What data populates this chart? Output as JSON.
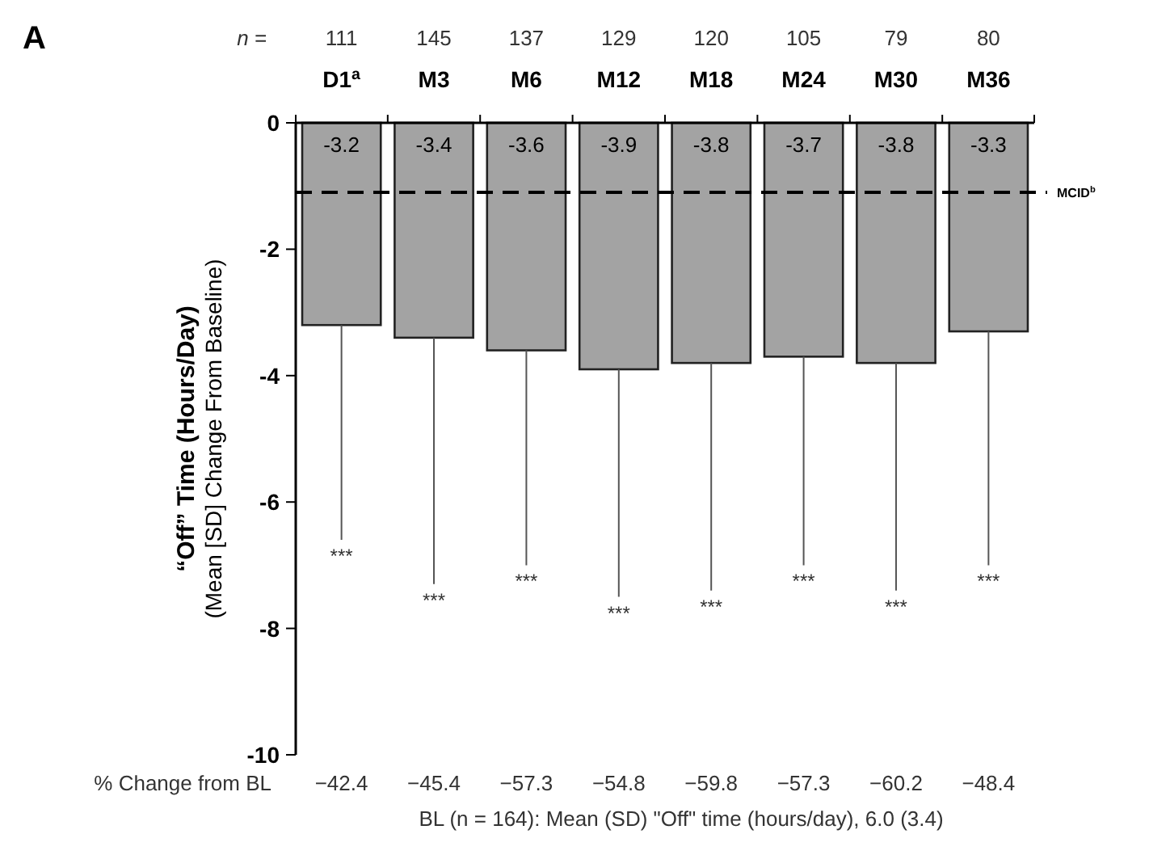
{
  "chart_data": {
    "type": "bar",
    "title": "A",
    "ylabel": "“Off” Time (Hours/Day)\n(Mean [SD] Change From Baseline)",
    "categories": [
      "D1$^{a}$",
      "M3",
      "M6",
      "M12",
      "M18",
      "M24",
      "M30",
      "M36"
    ],
    "values": [
      -3.2,
      -3.4,
      -3.6,
      -3.9,
      -3.8,
      -3.7,
      -3.8,
      -3.3
    ],
    "errors": [
      [
        -6.6,
        -3.2
      ],
      [
        -7.3,
        -3.4
      ],
      [
        -7.0,
        -3.6
      ],
      [
        -7.5,
        -3.9
      ],
      [
        -7.4,
        -3.8
      ],
      [
        -7.0,
        -3.7
      ],
      [
        -7.4,
        -3.8
      ],
      [
        -7.0,
        -3.3
      ]
    ],
    "color": "#a3a3a3",
    "data_labels": true,
    "ylim": [
      -10,
      0
    ],
    "yticks": [
      0,
      -2,
      -4,
      -6,
      -8,
      -10
    ],
    "grid": false,
    "ref_lines": [
      {
        "axis": "y",
        "value": -1.1,
        "label": "MCID$^{b}$",
        "line_style": "dashed",
        "color": "#000000"
      }
    ],
    "annotations": [
      "n =",
      "111",
      "145",
      "137",
      "129",
      "120",
      "105",
      "79",
      "80",
      "% Change from BL",
      "−42.4",
      "−45.4",
      "−57.3",
      "−54.8",
      "−59.8",
      "−57.3",
      "−60.2",
      "−48.4",
      "BL (n = 164): Mean (SD) \"Off\" time (hours/day), 6.0 (3.4)",
      "***",
      "***",
      "***",
      "***",
      "***",
      "***",
      "***",
      "***"
    ]
  }
}
